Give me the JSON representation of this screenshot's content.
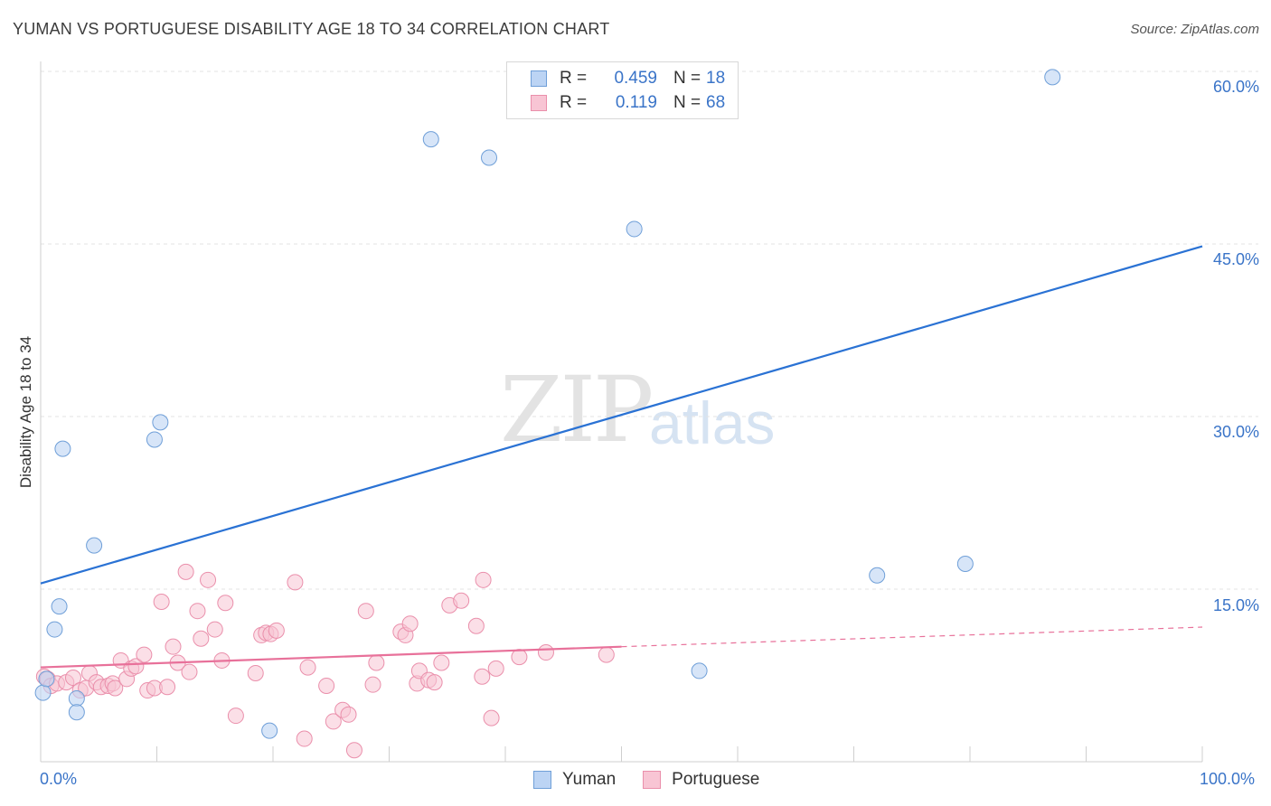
{
  "header": {
    "title": "YUMAN VS PORTUGUESE DISABILITY AGE 18 TO 34 CORRELATION CHART",
    "source": "Source: ZipAtlas.com"
  },
  "watermark": {
    "zip": "ZIP",
    "atlas": "atlas"
  },
  "legend": {
    "yuman": {
      "r_label": "R =",
      "r_value": "0.459",
      "n_label": "N =",
      "n_value": "18"
    },
    "portuguese": {
      "r_label": "R =",
      "r_value": "0.119",
      "n_label": "N =",
      "n_value": "68"
    }
  },
  "bottom_legend": {
    "yuman": "Yuman",
    "portuguese": "Portuguese"
  },
  "colors": {
    "yuman_fill": "#bcd4f4",
    "yuman_stroke": "#6f9fd8",
    "yuman_line": "#2a72d4",
    "portuguese_fill": "#f8c5d4",
    "portuguese_stroke": "#ea8fab",
    "portuguese_line": "#e8719a",
    "tick_text": "#3a74c8",
    "grid": "#e3e3e3"
  },
  "chart_data": {
    "type": "scatter",
    "title": "YUMAN VS PORTUGUESE DISABILITY AGE 18 TO 34 CORRELATION CHART",
    "xlabel": "",
    "ylabel": "Disability Age 18 to 34",
    "xlim": [
      0,
      100
    ],
    "ylim": [
      0,
      60
    ],
    "x_tick_labels": [
      "0.0%",
      "100.0%"
    ],
    "y_ticks": [
      15,
      30,
      45,
      60
    ],
    "y_tick_labels": [
      "15.0%",
      "30.0%",
      "45.0%",
      "60.0%"
    ],
    "grid": true,
    "series": [
      {
        "name": "Yuman",
        "r": 0.459,
        "n": 18,
        "points": [
          [
            0.2,
            6.0
          ],
          [
            1.2,
            11.5
          ],
          [
            1.6,
            13.5
          ],
          [
            1.9,
            27.2
          ],
          [
            3.1,
            5.5
          ],
          [
            3.1,
            4.3
          ],
          [
            4.6,
            18.8
          ],
          [
            9.8,
            28.0
          ],
          [
            10.3,
            29.5
          ],
          [
            19.7,
            2.7
          ],
          [
            33.6,
            54.1
          ],
          [
            38.6,
            52.5
          ],
          [
            51.1,
            46.3
          ],
          [
            56.7,
            7.9
          ],
          [
            72.0,
            16.2
          ],
          [
            79.6,
            17.2
          ],
          [
            87.1,
            59.5
          ],
          [
            0.5,
            7.2
          ]
        ],
        "trend": {
          "x0": 0,
          "y0": 15.5,
          "x1": 100,
          "y1": 44.8
        }
      },
      {
        "name": "Portuguese",
        "r": 0.119,
        "n": 68,
        "points": [
          [
            0.3,
            7.4
          ],
          [
            0.6,
            7.2
          ],
          [
            0.9,
            6.6
          ],
          [
            1.4,
            6.8
          ],
          [
            2.2,
            6.9
          ],
          [
            2.8,
            7.3
          ],
          [
            3.4,
            6.2
          ],
          [
            3.9,
            6.4
          ],
          [
            4.2,
            7.7
          ],
          [
            4.8,
            6.9
          ],
          [
            5.2,
            6.5
          ],
          [
            5.8,
            6.6
          ],
          [
            6.2,
            6.8
          ],
          [
            6.4,
            6.4
          ],
          [
            6.9,
            8.8
          ],
          [
            7.4,
            7.2
          ],
          [
            7.8,
            8.1
          ],
          [
            8.2,
            8.3
          ],
          [
            8.9,
            9.3
          ],
          [
            9.2,
            6.2
          ],
          [
            9.8,
            6.4
          ],
          [
            10.4,
            13.9
          ],
          [
            10.9,
            6.5
          ],
          [
            11.4,
            10.0
          ],
          [
            11.8,
            8.6
          ],
          [
            12.5,
            16.5
          ],
          [
            12.8,
            7.8
          ],
          [
            13.5,
            13.1
          ],
          [
            13.8,
            10.7
          ],
          [
            14.4,
            15.8
          ],
          [
            15.0,
            11.5
          ],
          [
            15.9,
            13.8
          ],
          [
            15.6,
            8.8
          ],
          [
            16.8,
            4.0
          ],
          [
            18.5,
            7.7
          ],
          [
            19.0,
            11.0
          ],
          [
            19.4,
            11.2
          ],
          [
            19.8,
            11.1
          ],
          [
            20.3,
            11.4
          ],
          [
            21.9,
            15.6
          ],
          [
            22.7,
            2.0
          ],
          [
            23.0,
            8.2
          ],
          [
            24.6,
            6.6
          ],
          [
            25.2,
            3.5
          ],
          [
            26.0,
            4.5
          ],
          [
            26.5,
            4.1
          ],
          [
            27.0,
            1.0
          ],
          [
            28.0,
            13.1
          ],
          [
            28.6,
            6.7
          ],
          [
            28.9,
            8.6
          ],
          [
            31.0,
            11.3
          ],
          [
            31.4,
            11.0
          ],
          [
            31.8,
            12.0
          ],
          [
            32.4,
            6.8
          ],
          [
            32.6,
            7.9
          ],
          [
            33.4,
            7.1
          ],
          [
            33.9,
            6.9
          ],
          [
            34.5,
            8.6
          ],
          [
            35.2,
            13.6
          ],
          [
            36.2,
            14.0
          ],
          [
            37.5,
            11.8
          ],
          [
            38.1,
            15.8
          ],
          [
            38.0,
            7.4
          ],
          [
            38.8,
            3.8
          ],
          [
            39.2,
            8.1
          ],
          [
            41.2,
            9.1
          ],
          [
            43.5,
            9.5
          ],
          [
            48.7,
            9.3
          ]
        ],
        "trend": {
          "x0": 0,
          "y0": 8.2,
          "x1": 50,
          "y1": 10.0
        },
        "trend_dashed": {
          "x0": 50,
          "y0": 10.0,
          "x1": 100,
          "y1": 11.7
        }
      }
    ]
  }
}
